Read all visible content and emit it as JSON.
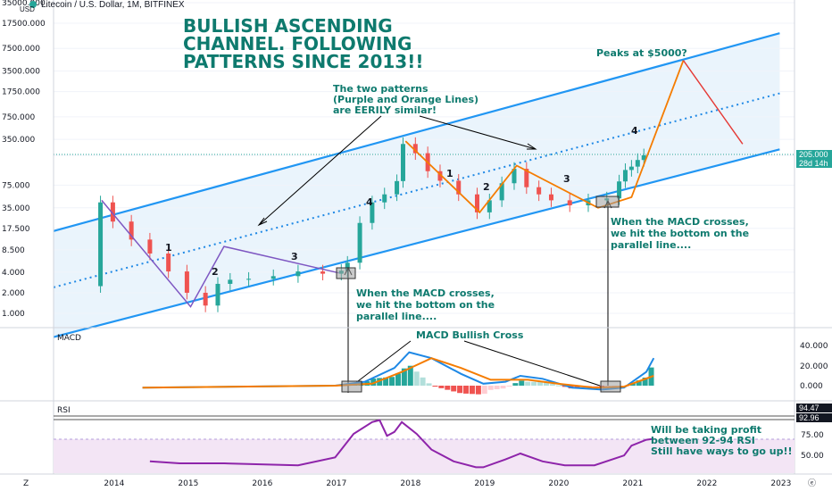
{
  "symbol": {
    "title": "Litecoin / U.S. Dollar, 1M, BITFINEX",
    "unit": "USD",
    "price_badge": "205.000",
    "timer_badge": "28d 14h"
  },
  "annotations": {
    "headline": [
      "BULLISH ASCENDING",
      "CHANNEL. FOLLOWING",
      "PATTERNS SINCE 2013!!"
    ],
    "similar": [
      "The two patterns",
      "(Purple and Orange Lines)",
      "are EERILY similar!"
    ],
    "peak": "Peaks at $5000?",
    "macd_left": [
      "When the MACD crosses,",
      "we hit the bottom on the",
      "parallel line...."
    ],
    "macd_right": [
      "When the MACD crosses,",
      "we hit the bottom on the",
      "parallel line...."
    ],
    "macd_cross": "MACD Bullish Cross",
    "rsi_note": [
      "Will be taking profit",
      "between 92-94 RSI",
      "Still have ways to go up!!"
    ],
    "wave_numbers_purple": [
      "1",
      "2",
      "3",
      "4"
    ],
    "wave_numbers_orange": [
      "1",
      "2",
      "3",
      "4"
    ]
  },
  "panes": {
    "macd_label": "MACD",
    "rsi_label": "RSI",
    "rsi_badge_top": "94.47",
    "rsi_badge_bottom": "92.96",
    "corner_left": "Z",
    "corner_right": "ⓔ"
  },
  "colors": {
    "up": "#26a69a",
    "down": "#ef5350",
    "channel": "#2196f3",
    "purple": "#7e57c2",
    "orange": "#f57c00",
    "arrow_red": "#e53935",
    "macd_line": "#1e88e5",
    "signal_line": "#f57c00",
    "rsi_line": "#8e24aa",
    "rsi_band": "#f3e5f5",
    "channel_fill": "#eaf4fc",
    "teal_text": "#0e7a6e"
  },
  "chart_data": [
    {
      "type": "candlestick",
      "title": "Litecoin / U.S. Dollar, 1M, BITFINEX",
      "y_scale": "log",
      "y_ticks": [
        "35000.000",
        "17500.000",
        "7500.000",
        "3500.000",
        "1750.000",
        "750.000",
        "350.000",
        "205.000",
        "75.000",
        "35.000",
        "17.500",
        "8.500",
        "4.000",
        "2.000",
        "1.000"
      ],
      "x_ticks": [
        "2014",
        "2015",
        "2016",
        "2017",
        "2018",
        "2019",
        "2020",
        "2021",
        "2022",
        "2023"
      ],
      "months": [
        "2013-05",
        "2013-11",
        "2014-01",
        "2014-04",
        "2014-07",
        "2014-10",
        "2015-01",
        "2015-04",
        "2015-06",
        "2015-08",
        "2015-11",
        "2016-03",
        "2016-07",
        "2016-11",
        "2017-02",
        "2017-03",
        "2017-05",
        "2017-07",
        "2017-09",
        "2017-11",
        "2017-12",
        "2018-02",
        "2018-04",
        "2018-06",
        "2018-09",
        "2018-12",
        "2019-02",
        "2019-04",
        "2019-06",
        "2019-08",
        "2019-10",
        "2019-12",
        "2020-03",
        "2020-06",
        "2020-09",
        "2020-11",
        "2020-12",
        "2021-01",
        "2021-02",
        "2021-03"
      ],
      "close": [
        2.5,
        42,
        22,
        12,
        7.5,
        4.1,
        2.0,
        1.3,
        2.7,
        3.1,
        3.2,
        3.5,
        4.1,
        3.8,
        4.2,
        5.5,
        21,
        42,
        55,
        86,
        300,
        220,
        120,
        87,
        55,
        30,
        45,
        80,
        130,
        70,
        55,
        45,
        38,
        45,
        48,
        85,
        125,
        140,
        175,
        205
      ],
      "channel_upper": [
        [
          2013.2,
          16
        ],
        [
          2023.0,
          12500
        ]
      ],
      "channel_lower": [
        [
          2013.2,
          0.45
        ],
        [
          2023.0,
          250
        ]
      ],
      "channel_mid": [
        [
          2013.2,
          2.4
        ],
        [
          2023.0,
          1650
        ]
      ],
      "purple_path": [
        [
          2013.85,
          45
        ],
        [
          2015.05,
          1.25
        ],
        [
          2015.5,
          9.5
        ],
        [
          2017.05,
          3.9
        ]
      ],
      "orange_path": [
        [
          2017.95,
          330
        ],
        [
          2018.95,
          30
        ],
        [
          2019.45,
          145
        ],
        [
          2020.55,
          35
        ],
        [
          2021.0,
          50
        ],
        [
          2021.7,
          5000
        ]
      ],
      "forecast_red": [
        [
          2021.7,
          5000
        ],
        [
          2022.5,
          300
        ]
      ]
    },
    {
      "type": "line",
      "name": "MACD",
      "y_ticks": [
        "40.000",
        "20.000",
        "0.000"
      ],
      "macd": [
        [
          2014.4,
          -2
        ],
        [
          2017.0,
          0
        ],
        [
          2017.4,
          4
        ],
        [
          2017.8,
          18
        ],
        [
          2018.0,
          34
        ],
        [
          2018.3,
          28
        ],
        [
          2018.7,
          12
        ],
        [
          2019.0,
          2
        ],
        [
          2019.3,
          4
        ],
        [
          2019.5,
          10
        ],
        [
          2019.8,
          7
        ],
        [
          2020.2,
          -2
        ],
        [
          2020.6,
          -4
        ],
        [
          2020.9,
          -2
        ],
        [
          2021.2,
          14
        ],
        [
          2021.3,
          28
        ]
      ],
      "signal": [
        [
          2014.4,
          -2
        ],
        [
          2017.0,
          0
        ],
        [
          2017.5,
          2
        ],
        [
          2017.9,
          14
        ],
        [
          2018.3,
          28
        ],
        [
          2018.7,
          18
        ],
        [
          2019.1,
          6
        ],
        [
          2019.6,
          6
        ],
        [
          2020.0,
          2
        ],
        [
          2020.5,
          -2
        ],
        [
          2020.9,
          -1
        ],
        [
          2021.3,
          10
        ]
      ]
    },
    {
      "type": "line",
      "name": "RSI",
      "y_ticks": [
        "94.47",
        "92.96",
        "75.00",
        "50.00"
      ],
      "rsi": [
        [
          2014.5,
          52
        ],
        [
          2014.9,
          50
        ],
        [
          2015.5,
          50
        ],
        [
          2016.5,
          48
        ],
        [
          2017.0,
          56
        ],
        [
          2017.25,
          80
        ],
        [
          2017.5,
          92
        ],
        [
          2017.6,
          94
        ],
        [
          2017.7,
          78
        ],
        [
          2017.8,
          82
        ],
        [
          2017.9,
          92
        ],
        [
          2018.1,
          80
        ],
        [
          2018.3,
          64
        ],
        [
          2018.6,
          52
        ],
        [
          2018.9,
          46
        ],
        [
          2019.0,
          46
        ],
        [
          2019.3,
          54
        ],
        [
          2019.5,
          60
        ],
        [
          2019.8,
          52
        ],
        [
          2020.1,
          48
        ],
        [
          2020.5,
          48
        ],
        [
          2020.9,
          58
        ],
        [
          2021.0,
          68
        ],
        [
          2021.2,
          74
        ],
        [
          2021.3,
          75
        ]
      ]
    }
  ]
}
